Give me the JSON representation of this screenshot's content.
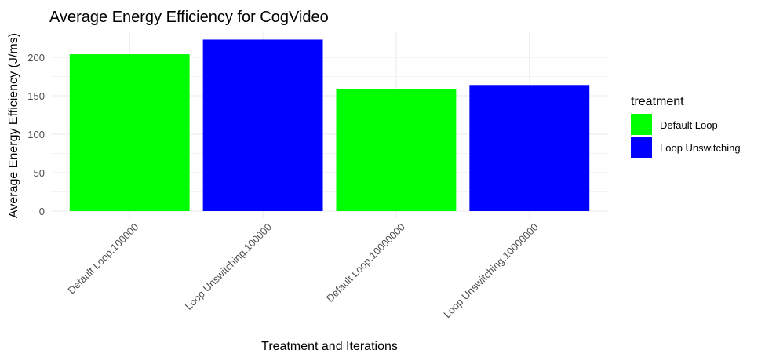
{
  "chart_data": {
    "type": "bar",
    "title": "Average Energy Efficiency for CogVideo",
    "xlabel": "Treatment and Iterations",
    "ylabel": "Average Energy Efficiency (J/ms)",
    "categories": [
      "Default Loop.100000",
      "Loop Unswitching.100000",
      "Default Loop.10000000",
      "Loop Unswitching.10000000"
    ],
    "values": [
      204,
      223,
      159,
      164
    ],
    "bar_treatment": [
      "Default Loop",
      "Loop Unswitching",
      "Default Loop",
      "Loop Unswitching"
    ],
    "ylim": [
      0,
      232
    ],
    "yticks": [
      0,
      50,
      100,
      150,
      200
    ],
    "grid": true,
    "legend": {
      "title": "treatment",
      "position": "right",
      "entries": [
        {
          "name": "Default Loop",
          "color": "#00ff00"
        },
        {
          "name": "Loop Unswitching",
          "color": "#0000ff"
        }
      ]
    },
    "x_tick_rotation": "45deg"
  }
}
